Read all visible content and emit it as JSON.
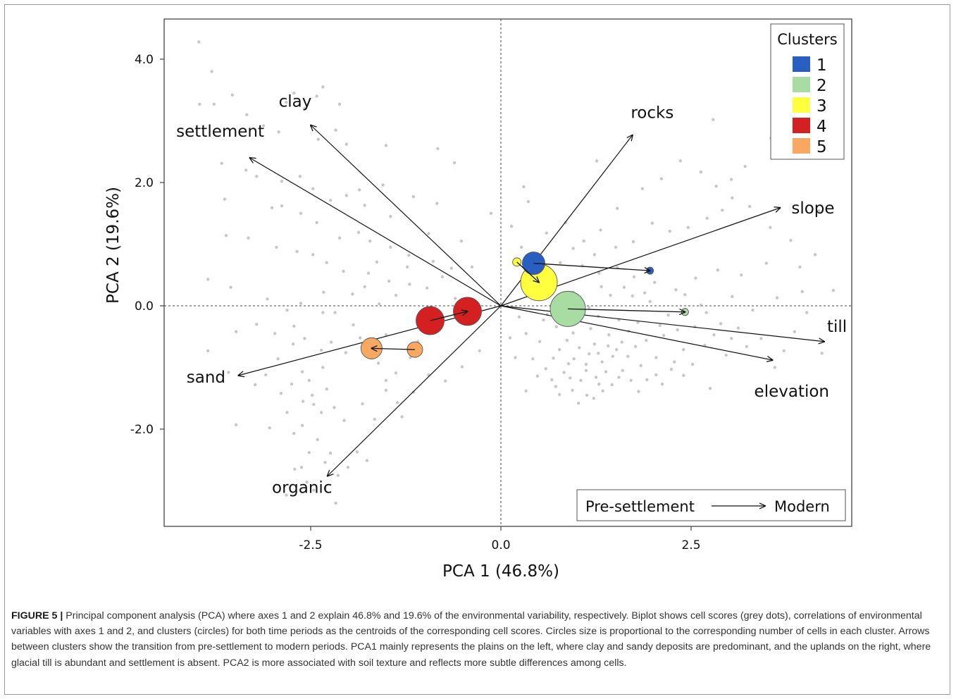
{
  "chart_data": {
    "type": "scatter",
    "title": "",
    "xlabel": "PCA 1 (46.8%)",
    "ylabel": "PCA 2 (19.6%)",
    "xlim": [
      -4.5,
      4.6
    ],
    "ylim": [
      -3.6,
      4.7
    ],
    "xticks": [
      -2.5,
      0.0,
      2.5
    ],
    "xtick_labels": [
      "-2.5",
      "0.0",
      "2.5"
    ],
    "yticks": [
      -2.0,
      0.0,
      2.0,
      4.0
    ],
    "ytick_labels": [
      "-2.0",
      "0.0",
      "2.0",
      "4.0"
    ],
    "grid": false,
    "reference_lines": [
      0,
      0
    ],
    "legend": {
      "title": "Clusters",
      "placement": "top-right",
      "entries": [
        {
          "label": "1",
          "color": "#2a5fc2"
        },
        {
          "label": "2",
          "color": "#a8dca2"
        },
        {
          "label": "3",
          "color": "#ffff40"
        },
        {
          "label": "4",
          "color": "#d42020"
        },
        {
          "label": "5",
          "color": "#f8a860"
        }
      ]
    },
    "period_legend": {
      "from": "Pre-settlement",
      "to": "Modern",
      "placement": "bottom-right"
    },
    "loadings": [
      {
        "name": "clay",
        "x": -2.5,
        "y": 2.93
      },
      {
        "name": "settlement",
        "x": -3.3,
        "y": 2.4
      },
      {
        "name": "rocks",
        "x": 1.73,
        "y": 2.77
      },
      {
        "name": "slope",
        "x": 3.67,
        "y": 1.59
      },
      {
        "name": "till",
        "x": 4.25,
        "y": -0.58
      },
      {
        "name": "elevation",
        "x": 3.57,
        "y": -0.88
      },
      {
        "name": "sand",
        "x": -3.45,
        "y": -1.13
      },
      {
        "name": "organic",
        "x": -2.28,
        "y": -2.76
      }
    ],
    "clusters": [
      {
        "cluster": "1",
        "pre": {
          "x": 0.43,
          "y": 0.69,
          "size": 16
        },
        "modern": {
          "x": 1.96,
          "y": 0.57,
          "size": 5
        }
      },
      {
        "cluster": "2",
        "pre": {
          "x": 0.88,
          "y": -0.05,
          "size": 25
        },
        "modern": {
          "x": 2.42,
          "y": -0.1,
          "size": 5
        }
      },
      {
        "cluster": "3",
        "pre": {
          "x": 0.21,
          "y": 0.71,
          "size": 6
        },
        "modern": {
          "x": 0.5,
          "y": 0.38,
          "size": 26
        }
      },
      {
        "cluster": "4",
        "pre": {
          "x": -0.93,
          "y": -0.24,
          "size": 20
        },
        "modern": {
          "x": -0.44,
          "y": -0.09,
          "size": 20
        }
      },
      {
        "cluster": "5",
        "pre": {
          "x": -1.13,
          "y": -0.71,
          "size": 11
        },
        "modern": {
          "x": -1.7,
          "y": -0.69,
          "size": 15
        }
      }
    ],
    "cell_scores_note": "",
    "cell_scores": [
      [
        -3.97,
        4.28
      ],
      [
        -3.8,
        3.8
      ],
      [
        -3.77,
        3.27
      ],
      [
        -3.96,
        3.27
      ],
      [
        -3.53,
        3.42
      ],
      [
        -3.34,
        3.1
      ],
      [
        -3.12,
        2.92
      ],
      [
        -2.92,
        2.82
      ],
      [
        -2.82,
        3.3
      ],
      [
        -2.72,
        3.45
      ],
      [
        -2.58,
        3.2
      ],
      [
        -2.42,
        3.4
      ],
      [
        -2.34,
        3.55
      ],
      [
        -2.12,
        3.27
      ],
      [
        -2.4,
        2.7
      ],
      [
        -2.17,
        2.85
      ],
      [
        -2.03,
        2.62
      ],
      [
        -1.51,
        2.6
      ],
      [
        -0.83,
        2.55
      ],
      [
        -0.61,
        2.32
      ],
      [
        -3.67,
        2.31
      ],
      [
        -3.35,
        2.2
      ],
      [
        -3.21,
        2.1
      ],
      [
        -2.88,
        2.02
      ],
      [
        -2.64,
        2.1
      ],
      [
        -2.47,
        1.9
      ],
      [
        -2.24,
        1.71
      ],
      [
        -2.03,
        1.79
      ],
      [
        -1.86,
        1.88
      ],
      [
        -1.55,
        1.96
      ],
      [
        -1.15,
        1.77
      ],
      [
        -0.84,
        1.66
      ],
      [
        -3.63,
        1.73
      ],
      [
        -3.01,
        1.59
      ],
      [
        -2.88,
        1.62
      ],
      [
        -2.63,
        1.5
      ],
      [
        -2.42,
        1.35
      ],
      [
        -2.12,
        1.1
      ],
      [
        -1.87,
        1.19
      ],
      [
        -1.72,
        1.05
      ],
      [
        -1.45,
        0.95
      ],
      [
        -1.21,
        0.82
      ],
      [
        -0.89,
        0.72
      ],
      [
        -0.65,
        0.61
      ],
      [
        -3.61,
        1.14
      ],
      [
        -3.32,
        1.1
      ],
      [
        -2.95,
        0.95
      ],
      [
        -2.68,
        0.88
      ],
      [
        -2.47,
        0.83
      ],
      [
        -2.29,
        0.7
      ],
      [
        -2.07,
        0.56
      ],
      [
        -1.74,
        0.53
      ],
      [
        -1.47,
        0.4
      ],
      [
        -1.2,
        0.35
      ],
      [
        -0.97,
        0.29
      ],
      [
        -3.85,
        0.43
      ],
      [
        -3.55,
        0.3
      ],
      [
        -3.07,
        0.11
      ],
      [
        -2.81,
        -0.07
      ],
      [
        -2.63,
        0.04
      ],
      [
        -2.33,
        0.22
      ],
      [
        -2.18,
        -0.11
      ],
      [
        -1.95,
        0.19
      ],
      [
        -1.6,
        0.03
      ],
      [
        -3.48,
        -0.42
      ],
      [
        -3.21,
        -0.3
      ],
      [
        -2.97,
        -0.45
      ],
      [
        -2.73,
        -0.62
      ],
      [
        -2.58,
        -0.53
      ],
      [
        -2.36,
        -0.72
      ],
      [
        -2.23,
        -0.59
      ],
      [
        -2.04,
        -0.76
      ],
      [
        -1.85,
        -0.52
      ],
      [
        -1.61,
        -0.93
      ],
      [
        -1.38,
        -1.09
      ],
      [
        -1.19,
        -0.84
      ],
      [
        -3.85,
        -0.73
      ],
      [
        -3.58,
        -1.08
      ],
      [
        -3.23,
        -1.28
      ],
      [
        -3.09,
        -1.12
      ],
      [
        -2.89,
        -1.42
      ],
      [
        -2.75,
        -1.27
      ],
      [
        -2.6,
        -1.55
      ],
      [
        -2.48,
        -1.45
      ],
      [
        -2.36,
        -1.73
      ],
      [
        -2.19,
        -1.65
      ],
      [
        -2.06,
        -1.86
      ],
      [
        -1.82,
        -1.59
      ],
      [
        -1.51,
        -1.37
      ],
      [
        -1.3,
        -1.8
      ],
      [
        -3.48,
        -1.93
      ],
      [
        -3.04,
        -1.98
      ],
      [
        -2.81,
        -1.73
      ],
      [
        -2.72,
        -2.07
      ],
      [
        -2.61,
        -1.94
      ],
      [
        -2.52,
        -2.38
      ],
      [
        -2.41,
        -2.17
      ],
      [
        -2.31,
        -2.54
      ],
      [
        -2.24,
        -2.39
      ],
      [
        -2.14,
        -2.75
      ],
      [
        -2.01,
        -2.62
      ],
      [
        -1.89,
        -2.37
      ],
      [
        -1.76,
        -2.51
      ],
      [
        -2.71,
        -2.65
      ],
      [
        -2.55,
        -2.86
      ],
      [
        -2.46,
        -2.99
      ],
      [
        -2.31,
        -2.96
      ],
      [
        -2.62,
        -2.62
      ],
      [
        -2.17,
        -3.2
      ],
      [
        -2.82,
        -3.07
      ],
      [
        -2.46,
        -1.6
      ],
      [
        -2.29,
        -1.35
      ],
      [
        -2.61,
        -1.07
      ],
      [
        -2.93,
        -0.86
      ],
      [
        -2.72,
        -0.33
      ],
      [
        -2.34,
        -0.11
      ],
      [
        -1.94,
        -0.31
      ],
      [
        -1.74,
        -0.74
      ],
      [
        -2.34,
        -1.0
      ],
      [
        -2.52,
        -1.21
      ],
      [
        0.3,
        1.93
      ],
      [
        0.36,
        1.69
      ],
      [
        0.6,
        1.18
      ],
      [
        0.85,
        1.35
      ],
      [
        1.09,
        1.05
      ],
      [
        1.31,
        1.23
      ],
      [
        1.53,
        1.58
      ],
      [
        1.86,
        1.9
      ],
      [
        2.11,
        2.06
      ],
      [
        2.36,
        2.35
      ],
      [
        2.63,
        2.17
      ],
      [
        2.83,
        1.94
      ],
      [
        3.04,
        1.75
      ],
      [
        3.27,
        1.61
      ],
      [
        3.54,
        1.27
      ],
      [
        3.81,
        1.06
      ],
      [
        3.55,
        2.72
      ],
      [
        3.21,
        2.26
      ],
      [
        2.91,
        1.55
      ],
      [
        2.71,
        1.42
      ],
      [
        2.46,
        1.27
      ],
      [
        2.22,
        1.21
      ],
      [
        1.99,
        1.34
      ],
      [
        1.74,
        1.04
      ],
      [
        1.51,
        0.95
      ],
      [
        1.23,
        0.83
      ],
      [
        0.95,
        0.93
      ],
      [
        0.78,
        0.7
      ],
      [
        1.07,
        0.65
      ],
      [
        1.29,
        0.53
      ],
      [
        1.53,
        0.62
      ],
      [
        1.75,
        0.47
      ],
      [
        2.02,
        0.38
      ],
      [
        2.3,
        0.26
      ],
      [
        2.56,
        0.45
      ],
      [
        2.85,
        0.58
      ],
      [
        3.16,
        0.5
      ],
      [
        3.49,
        0.69
      ],
      [
        3.93,
        0.63
      ],
      [
        4.13,
        0.83
      ],
      [
        4.37,
        0.25
      ],
      [
        3.96,
        0.23
      ],
      [
        3.63,
        0.13
      ],
      [
        3.31,
        -0.07
      ],
      [
        3.04,
        0.15
      ],
      [
        2.7,
        -0.11
      ],
      [
        2.42,
        0.18
      ],
      [
        2.2,
        -0.15
      ],
      [
        1.96,
        0.07
      ],
      [
        1.73,
        0.16
      ],
      [
        1.44,
        0.17
      ],
      [
        1.16,
        -0.03
      ],
      [
        0.61,
        -0.14
      ],
      [
        0.73,
        -0.34
      ],
      [
        0.95,
        -0.44
      ],
      [
        1.18,
        -0.37
      ],
      [
        1.42,
        -0.47
      ],
      [
        1.68,
        -0.41
      ],
      [
        1.91,
        -0.56
      ],
      [
        2.14,
        -0.48
      ],
      [
        2.4,
        -0.71
      ],
      [
        2.68,
        -0.64
      ],
      [
        2.96,
        -0.8
      ],
      [
        3.23,
        -0.66
      ],
      [
        3.6,
        -1.0
      ],
      [
        3.86,
        -0.42
      ],
      [
        0.51,
        -0.58
      ],
      [
        0.77,
        -0.71
      ],
      [
        0.96,
        -0.86
      ],
      [
        1.16,
        -0.78
      ],
      [
        1.33,
        -0.91
      ],
      [
        1.52,
        -0.71
      ],
      [
        1.67,
        -0.82
      ],
      [
        1.84,
        -0.97
      ],
      [
        2.04,
        -0.84
      ],
      [
        2.24,
        -1.03
      ],
      [
        0.59,
        -1.02
      ],
      [
        0.83,
        -1.08
      ],
      [
        1.05,
        -1.21
      ],
      [
        1.25,
        -1.16
      ],
      [
        1.46,
        -1.28
      ],
      [
        1.71,
        -1.21
      ],
      [
        0.72,
        -1.31
      ],
      [
        0.94,
        -1.37
      ],
      [
        1.13,
        -1.45
      ],
      [
        1.34,
        -1.38
      ],
      [
        1.02,
        -1.58
      ],
      [
        1.22,
        -1.5
      ],
      [
        1.41,
        -0.65
      ],
      [
        1.23,
        -0.62
      ],
      [
        1.03,
        -0.68
      ],
      [
        0.87,
        -0.56
      ],
      [
        1.59,
        -0.59
      ],
      [
        1.77,
        -0.66
      ],
      [
        1.47,
        -0.82
      ],
      [
        1.28,
        -0.77
      ],
      [
        1.12,
        -0.95
      ],
      [
        0.89,
        -0.94
      ],
      [
        0.69,
        -0.85
      ],
      [
        1.6,
        -1.05
      ],
      [
        1.38,
        -1.07
      ],
      [
        1.92,
        -1.2
      ],
      [
        2.12,
        -1.27
      ],
      [
        2.4,
        -1.13
      ],
      [
        2.75,
        -1.34
      ],
      [
        0.33,
        -0.45
      ],
      [
        0.42,
        -0.86
      ],
      [
        0.56,
        -0.23
      ],
      [
        0.24,
        -0.18
      ],
      [
        0.58,
        0.25
      ],
      [
        0.73,
        0.06
      ],
      [
        1.32,
        0.31
      ],
      [
        1.62,
        0.3
      ],
      [
        1.89,
        0.21
      ],
      [
        2.63,
        0.01
      ],
      [
        2.89,
        -0.29
      ],
      [
        3.12,
        -0.36
      ],
      [
        3.42,
        -0.53
      ],
      [
        3.72,
        -0.73
      ],
      [
        4.02,
        -0.11
      ],
      [
        4.22,
        -0.77
      ],
      [
        0.64,
        0.54
      ],
      [
        0.95,
        0.22
      ],
      [
        1.0,
        -0.25
      ],
      [
        1.28,
        -0.17
      ],
      [
        1.55,
        -0.23
      ],
      [
        1.8,
        -0.27
      ],
      [
        2.09,
        -0.32
      ],
      [
        2.32,
        -0.39
      ],
      [
        2.55,
        -0.34
      ],
      [
        2.8,
        -0.47
      ],
      [
        3.03,
        -0.53
      ],
      [
        0.48,
        -1.14
      ],
      [
        0.67,
        -1.2
      ],
      [
        0.77,
        -1.44
      ],
      [
        0.91,
        -1.17
      ],
      [
        1.12,
        -1.05
      ],
      [
        1.29,
        -1.27
      ],
      [
        1.55,
        -1.16
      ],
      [
        1.81,
        -1.39
      ],
      [
        2.04,
        -1.12
      ],
      [
        2.28,
        -0.91
      ],
      [
        2.52,
        -0.95
      ],
      [
        -0.38,
        0.63
      ],
      [
        -0.6,
        0.12
      ],
      [
        -0.77,
        0.47
      ],
      [
        -0.93,
        -0.43
      ],
      [
        -1.09,
        -0.58
      ],
      [
        -1.23,
        0.63
      ],
      [
        -1.38,
        0.17
      ],
      [
        -1.51,
        -0.47
      ],
      [
        -1.63,
        0.71
      ],
      [
        -1.79,
        0.31
      ],
      [
        -0.28,
        -0.73
      ],
      [
        -0.51,
        -0.99
      ],
      [
        -0.73,
        -1.22
      ],
      [
        -0.95,
        -1.12
      ],
      [
        -1.15,
        -1.4
      ],
      [
        -1.36,
        -1.57
      ],
      [
        -1.51,
        -1.21
      ],
      [
        -1.66,
        -1.84
      ],
      [
        -0.52,
        1.05
      ],
      [
        -0.95,
        1.17
      ],
      [
        -1.45,
        1.45
      ],
      [
        -1.79,
        1.63
      ],
      [
        0.27,
        0.95
      ],
      [
        0.14,
        1.29
      ],
      [
        -0.13,
        1.5
      ],
      [
        3.03,
        2.05
      ],
      [
        4.18,
        1.54
      ],
      [
        1.26,
        2.35
      ],
      [
        2.79,
        3.02
      ],
      [
        0.33,
        -1.38
      ],
      [
        0.19,
        -0.84
      ],
      [
        0.12,
        -0.52
      ]
    ]
  },
  "caption": {
    "label": "FIGURE 5 |",
    "text": "Principal component analysis (PCA) where axes 1 and 2 explain 46.8% and 19.6% of the environmental variability, respectively. Biplot shows cell scores (grey dots), correlations of environmental variables with axes 1 and 2, and clusters (circles) for both time periods as the centroids of the corresponding cell scores. Circles size is proportional to the corresponding number of cells in each cluster. Arrows between clusters show the transition from pre-settlement to modern periods. PCA1 mainly represents the plains on the left, where clay and sandy deposits are predominant, and the uplands on the right, where glacial till is abundant and settlement is absent. PCA2 is more associated with soil texture and reflects more subtle differences among cells."
  }
}
